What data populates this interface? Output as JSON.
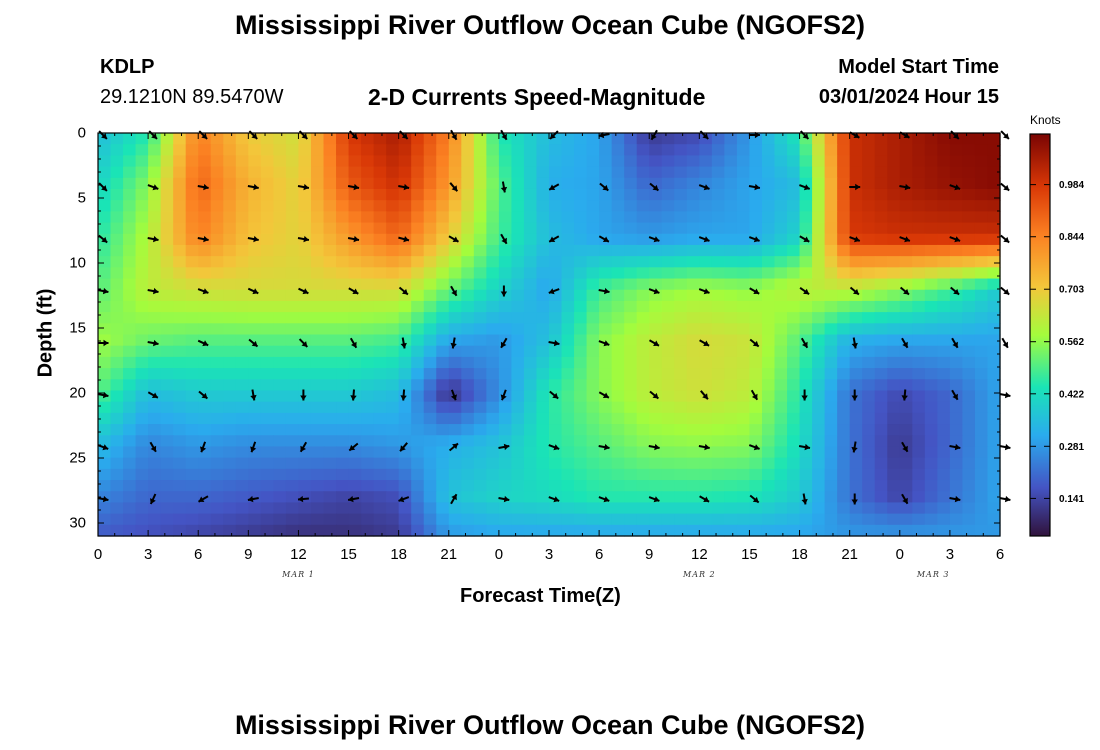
{
  "page": {
    "title": "Mississippi River Outflow Ocean Cube (NGOFS2)",
    "title_bottom": "Mississippi River Outflow Ocean Cube (NGOFS2)",
    "station": {
      "id": "KDLP",
      "coords": "29.1210N  89.5470W"
    },
    "plot_label": "2-D Currents Speed-Magnitude",
    "model_start": {
      "label": "Model Start Time",
      "value": "03/01/2024 Hour 15"
    }
  },
  "chart_data": {
    "type": "heatmap",
    "title": "2-D Currents Speed-Magnitude",
    "xlabel": "Forecast Time(Z)",
    "ylabel": "Depth (ft)",
    "x_ticks": [
      "0",
      "3",
      "6",
      "9",
      "12",
      "15",
      "18",
      "21",
      "0",
      "3",
      "6",
      "9",
      "12",
      "15",
      "18",
      "21",
      "0",
      "3",
      "6"
    ],
    "x_range_hours": [
      0,
      54
    ],
    "x_date_labels": [
      {
        "label": "MAR 1",
        "hour": 12
      },
      {
        "label": "MAR 2",
        "hour": 36
      },
      {
        "label": "MAR 3",
        "hour": 50
      }
    ],
    "y_ticks": [
      "0",
      "5",
      "10",
      "15",
      "20",
      "25",
      "30"
    ],
    "y_range": [
      0,
      31
    ],
    "colorbar": {
      "unit": "Knots",
      "ticks": [
        "0.984",
        "0.844",
        "0.703",
        "0.562",
        "0.422",
        "0.281",
        "0.141"
      ],
      "tick_values": [
        0.984,
        0.844,
        0.703,
        0.562,
        0.422,
        0.281,
        0.141
      ],
      "range": [
        0.04,
        1.12
      ]
    },
    "hours": [
      0,
      3,
      6,
      9,
      12,
      15,
      18,
      21,
      24,
      27,
      30,
      33,
      36,
      39,
      42,
      45,
      48,
      51,
      54
    ],
    "depths": [
      0,
      4,
      8,
      12,
      16,
      20,
      24,
      28,
      31
    ],
    "speed": [
      [
        0.35,
        0.45,
        0.85,
        0.7,
        0.65,
        0.98,
        1.05,
        0.85,
        0.45,
        0.35,
        0.3,
        0.12,
        0.15,
        0.28,
        0.45,
        1.0,
        1.05,
        1.1,
        1.1
      ],
      [
        0.4,
        0.55,
        0.9,
        0.75,
        0.68,
        0.92,
        1.0,
        0.8,
        0.5,
        0.32,
        0.3,
        0.2,
        0.25,
        0.3,
        0.35,
        1.0,
        1.05,
        1.08,
        1.1
      ],
      [
        0.45,
        0.6,
        0.85,
        0.72,
        0.68,
        0.8,
        0.9,
        0.7,
        0.48,
        0.35,
        0.3,
        0.28,
        0.3,
        0.3,
        0.4,
        0.98,
        1.0,
        1.0,
        1.0
      ],
      [
        0.5,
        0.62,
        0.65,
        0.66,
        0.66,
        0.66,
        0.66,
        0.52,
        0.4,
        0.3,
        0.48,
        0.55,
        0.58,
        0.56,
        0.62,
        0.62,
        0.56,
        0.48,
        0.38
      ],
      [
        0.58,
        0.52,
        0.5,
        0.5,
        0.5,
        0.5,
        0.48,
        0.3,
        0.28,
        0.36,
        0.55,
        0.62,
        0.66,
        0.64,
        0.5,
        0.32,
        0.3,
        0.3,
        0.3
      ],
      [
        0.5,
        0.35,
        0.38,
        0.38,
        0.38,
        0.38,
        0.35,
        0.1,
        0.26,
        0.45,
        0.55,
        0.62,
        0.65,
        0.62,
        0.45,
        0.22,
        0.15,
        0.2,
        0.3
      ],
      [
        0.35,
        0.25,
        0.28,
        0.26,
        0.26,
        0.26,
        0.28,
        0.32,
        0.36,
        0.45,
        0.5,
        0.55,
        0.56,
        0.55,
        0.42,
        0.22,
        0.12,
        0.2,
        0.3
      ],
      [
        0.25,
        0.2,
        0.2,
        0.18,
        0.16,
        0.14,
        0.16,
        0.36,
        0.4,
        0.42,
        0.45,
        0.45,
        0.45,
        0.44,
        0.38,
        0.22,
        0.14,
        0.22,
        0.3
      ],
      [
        0.18,
        0.16,
        0.14,
        0.12,
        0.1,
        0.1,
        0.12,
        0.28,
        0.3,
        0.3,
        0.3,
        0.3,
        0.3,
        0.3,
        0.3,
        0.28,
        0.28,
        0.28,
        0.28
      ]
    ],
    "vector_depths": [
      0,
      4,
      8,
      12,
      16,
      20,
      24,
      28
    ],
    "vector_directions_deg": [
      [
        45,
        45,
        45,
        45,
        45,
        45,
        45,
        60,
        60,
        135,
        170,
        120,
        45,
        0,
        45,
        30,
        30,
        45,
        45
      ],
      [
        45,
        20,
        10,
        10,
        10,
        10,
        10,
        50,
        80,
        150,
        40,
        40,
        20,
        10,
        20,
        0,
        10,
        20,
        40
      ],
      [
        40,
        10,
        10,
        10,
        10,
        10,
        15,
        30,
        60,
        150,
        30,
        20,
        20,
        20,
        30,
        20,
        20,
        20,
        40
      ],
      [
        10,
        10,
        20,
        25,
        25,
        30,
        40,
        60,
        90,
        160,
        10,
        20,
        20,
        30,
        35,
        40,
        40,
        40,
        40
      ],
      [
        0,
        10,
        25,
        40,
        45,
        60,
        80,
        100,
        120,
        10,
        20,
        30,
        30,
        40,
        60,
        80,
        60,
        60,
        60
      ],
      [
        10,
        30,
        40,
        80,
        90,
        95,
        95,
        70,
        110,
        40,
        30,
        40,
        50,
        60,
        90,
        90,
        95,
        60,
        10
      ],
      [
        20,
        60,
        110,
        110,
        120,
        140,
        130,
        320,
        350,
        20,
        10,
        10,
        10,
        20,
        10,
        100,
        60,
        10,
        10
      ],
      [
        10,
        115,
        150,
        170,
        175,
        170,
        160,
        300,
        10,
        20,
        20,
        20,
        30,
        40,
        80,
        90,
        60,
        10,
        10
      ]
    ]
  }
}
